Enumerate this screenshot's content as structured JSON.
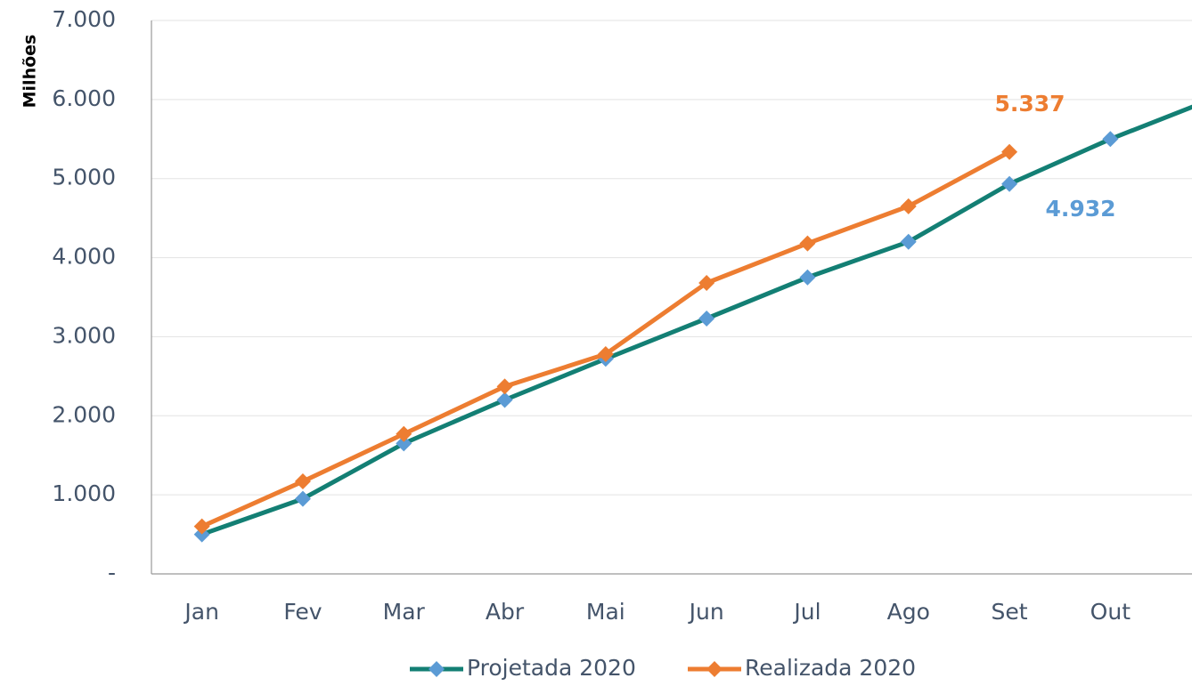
{
  "chart_data": {
    "type": "line",
    "y_label": "Milhões",
    "categories": [
      "Jan",
      "Fev",
      "Mar",
      "Abr",
      "Mai",
      "Jun",
      "Jul",
      "Ago",
      "Set",
      "Out",
      null
    ],
    "series": [
      {
        "name": "Projetada 2020",
        "color": "#137f74",
        "marker_color": "#5b9bd5",
        "values": [
          500,
          950,
          1650,
          2200,
          2720,
          3230,
          3750,
          4200,
          4932,
          5500,
          6000
        ],
        "value_labels": [
          null,
          null,
          null,
          null,
          null,
          null,
          null,
          null,
          "4.932",
          null,
          null
        ]
      },
      {
        "name": "Realizada 2020",
        "color": "#ed7d31",
        "marker_color": "#ed7d31",
        "values": [
          600,
          1170,
          1770,
          2370,
          2780,
          3680,
          4180,
          4650,
          5337,
          null,
          null
        ],
        "value_labels": [
          null,
          null,
          null,
          null,
          null,
          null,
          null,
          null,
          "5.337",
          null,
          null
        ]
      }
    ],
    "ylim": [
      0,
      7000
    ],
    "yticks": [
      {
        "value": 0,
        "label": "-"
      },
      {
        "value": 1000,
        "label": "1.000"
      },
      {
        "value": 2000,
        "label": "2.000"
      },
      {
        "value": 3000,
        "label": "3.000"
      },
      {
        "value": 4000,
        "label": "4.000"
      },
      {
        "value": 5000,
        "label": "5.000"
      },
      {
        "value": 6000,
        "label": "6.000"
      },
      {
        "value": 7000,
        "label": "7.000"
      }
    ],
    "grid": true,
    "legend": "bottom"
  }
}
